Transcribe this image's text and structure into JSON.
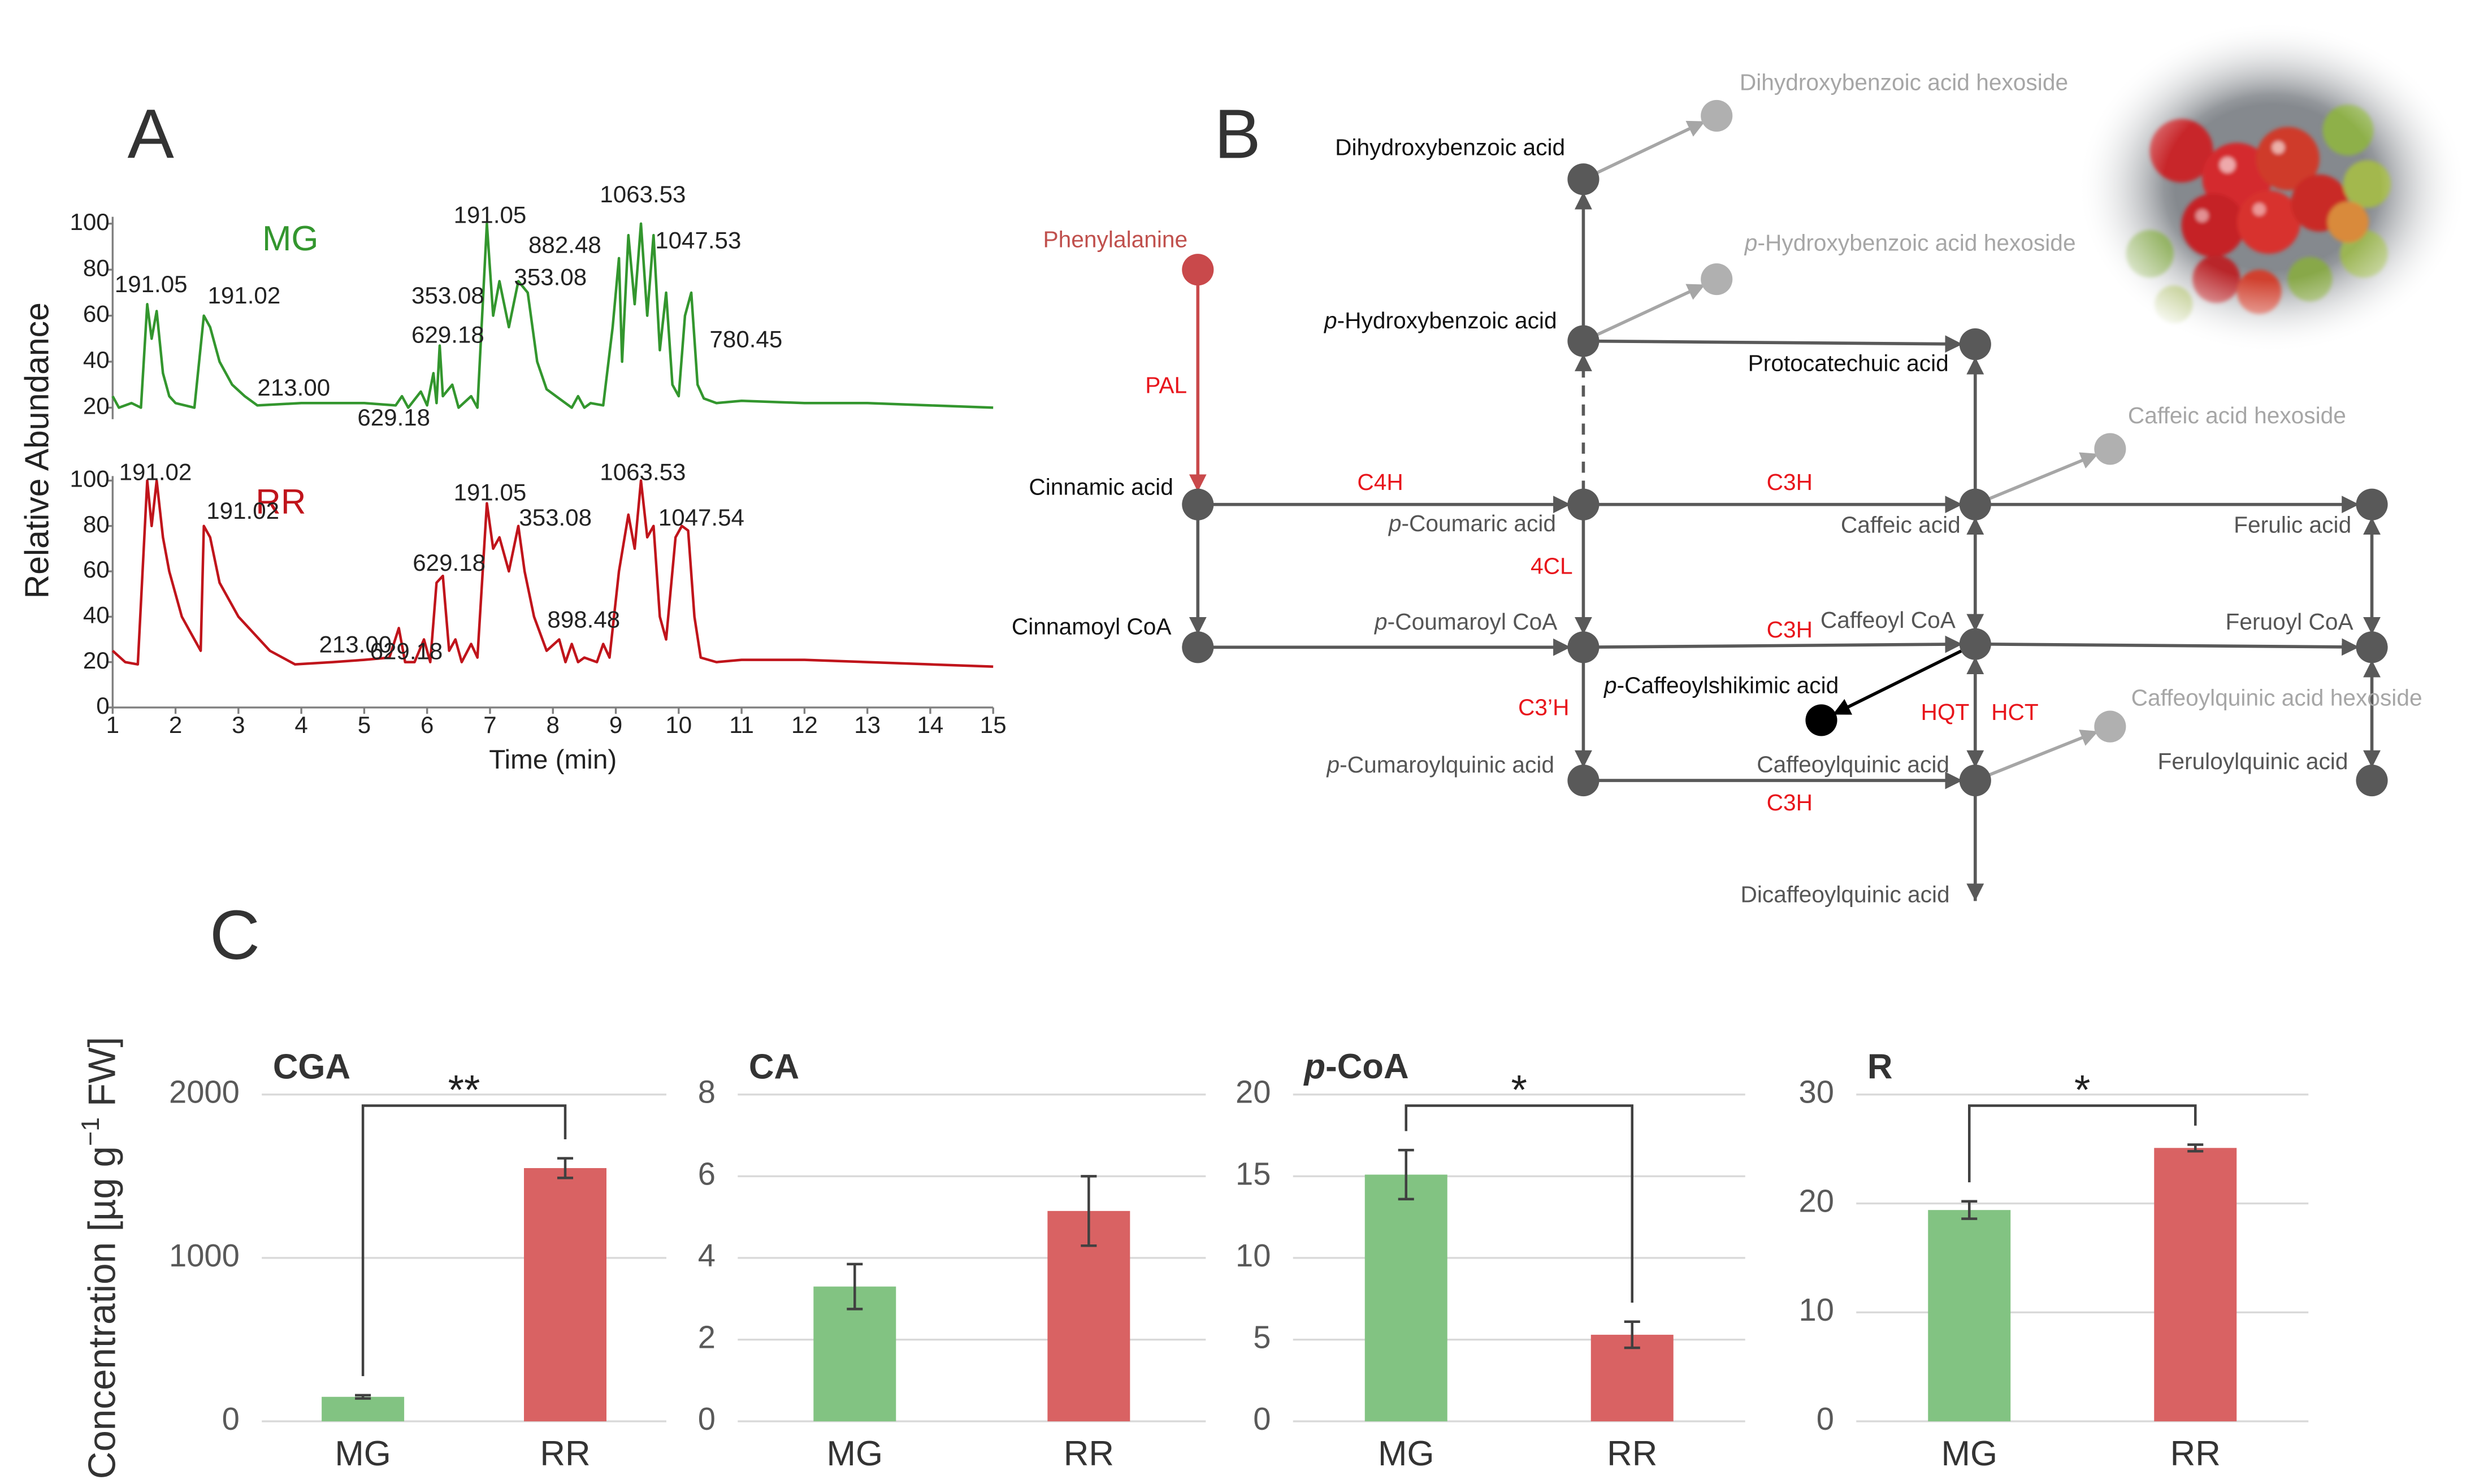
{
  "panel_labels": [
    "A",
    "B",
    "C"
  ],
  "chart_data": [
    {
      "type": "line",
      "ylabel": "Relative Abundance",
      "x": [
        1.0,
        1.1,
        1.3,
        1.45,
        1.55,
        1.62,
        1.7,
        1.8,
        1.9,
        2.0,
        2.3,
        2.45,
        2.55,
        2.7,
        2.9,
        3.1,
        3.3,
        4.0,
        5.0,
        5.5,
        5.6,
        5.7,
        5.9,
        6.0,
        6.1,
        6.15,
        6.2,
        6.25,
        6.4,
        6.5,
        6.7,
        6.8,
        6.95,
        7.05,
        7.15,
        7.3,
        7.45,
        7.6,
        7.75,
        7.9,
        8.1,
        8.3,
        8.4,
        8.5,
        8.6,
        8.8,
        8.95,
        9.05,
        9.1,
        9.2,
        9.3,
        9.4,
        9.5,
        9.6,
        9.7,
        9.8,
        9.9,
        10.0,
        10.1,
        10.2,
        10.3,
        10.4,
        10.6,
        11,
        12,
        13,
        14,
        15
      ],
      "series": [
        {
          "name": "MG",
          "color": "#33962e",
          "values": [
            25,
            20,
            22,
            20,
            65,
            50,
            62,
            35,
            25,
            22,
            20,
            60,
            55,
            40,
            30,
            25,
            21,
            22,
            22,
            21,
            25,
            20,
            27,
            21,
            35,
            22,
            47,
            25,
            30,
            20,
            25,
            20,
            100,
            60,
            75,
            55,
            75,
            70,
            40,
            28,
            24,
            20,
            25,
            20,
            22,
            21,
            55,
            85,
            40,
            95,
            65,
            100,
            60,
            95,
            45,
            70,
            30,
            25,
            60,
            70,
            30,
            24,
            22,
            23,
            22,
            22,
            21,
            20
          ]
        }
      ],
      "xlim": [
        1,
        15
      ],
      "ylim": [
        15,
        103
      ],
      "yticks": [
        20,
        40,
        60,
        80,
        100
      ],
      "annotations": [
        {
          "label": "191.05",
          "x": 1.61,
          "y": 73
        },
        {
          "label": "191.02",
          "x": 3.09,
          "y": 68
        },
        {
          "label": "213.00",
          "x": 3.88,
          "y": 28
        },
        {
          "label": "629.18",
          "x": 5.47,
          "y": 15
        },
        {
          "label": "629.18",
          "x": 6.33,
          "y": 51
        },
        {
          "label": "353.08",
          "x": 6.33,
          "y": 68
        },
        {
          "label": "191.05",
          "x": 7.0,
          "y": 103
        },
        {
          "label": "882.48",
          "x": 8.19,
          "y": 90
        },
        {
          "label": "353.08",
          "x": 7.96,
          "y": 76
        },
        {
          "label": "1063.53",
          "x": 9.43,
          "y": 112
        },
        {
          "label": "1047.53",
          "x": 10.31,
          "y": 92
        },
        {
          "label": "780.45",
          "x": 11.07,
          "y": 49
        }
      ]
    },
    {
      "type": "line",
      "xlabel": "Time (min)",
      "x": [
        1.0,
        1.2,
        1.4,
        1.55,
        1.62,
        1.7,
        1.8,
        1.9,
        2.1,
        2.3,
        2.4,
        2.45,
        2.55,
        2.7,
        3.0,
        3.5,
        3.9,
        4.5,
        5.0,
        5.4,
        5.55,
        5.65,
        5.8,
        5.95,
        6.05,
        6.15,
        6.25,
        6.35,
        6.45,
        6.55,
        6.7,
        6.8,
        6.95,
        7.05,
        7.15,
        7.3,
        7.45,
        7.55,
        7.7,
        7.9,
        8.1,
        8.2,
        8.3,
        8.4,
        8.5,
        8.7,
        8.8,
        8.9,
        9.05,
        9.2,
        9.3,
        9.4,
        9.5,
        9.6,
        9.7,
        9.8,
        9.95,
        10.05,
        10.15,
        10.25,
        10.35,
        10.6,
        11,
        12,
        13,
        14,
        15
      ],
      "series": [
        {
          "name": "RR",
          "color": "#c0141b",
          "values": [
            25,
            20,
            19,
            100,
            80,
            100,
            75,
            60,
            40,
            30,
            25,
            80,
            75,
            55,
            40,
            25,
            19,
            20,
            21,
            22,
            35,
            20,
            20,
            30,
            20,
            55,
            58,
            25,
            30,
            20,
            28,
            22,
            90,
            70,
            75,
            60,
            80,
            60,
            40,
            25,
            30,
            20,
            28,
            20,
            22,
            20,
            28,
            22,
            60,
            85,
            70,
            100,
            75,
            80,
            40,
            30,
            75,
            80,
            78,
            40,
            22,
            20,
            21,
            21,
            20,
            19,
            18
          ]
        }
      ],
      "xlim": [
        1,
        15
      ],
      "ylim": [
        0,
        102
      ],
      "xticks": [
        1,
        2,
        3,
        4,
        5,
        6,
        7,
        8,
        9,
        10,
        11,
        12,
        13,
        14,
        15
      ],
      "yticks": [
        0,
        20,
        40,
        60,
        80,
        100
      ],
      "annotations": [
        {
          "label": "191.02",
          "x": 1.68,
          "y": 103
        },
        {
          "label": "191.02",
          "x": 3.07,
          "y": 86
        },
        {
          "label": "213.00",
          "x": 4.86,
          "y": 27
        },
        {
          "label": "629.18",
          "x": 5.67,
          "y": 24
        },
        {
          "label": "629.18",
          "x": 6.35,
          "y": 63
        },
        {
          "label": "191.05",
          "x": 7.0,
          "y": 94
        },
        {
          "label": "353.08",
          "x": 8.04,
          "y": 83
        },
        {
          "label": "898.48",
          "x": 8.49,
          "y": 38
        },
        {
          "label": "1063.53",
          "x": 9.43,
          "y": 103
        },
        {
          "label": "1047.54",
          "x": 10.36,
          "y": 83
        }
      ]
    },
    {
      "type": "bar",
      "title": "CGA",
      "ylabel": [
        "Concentration [µg g",
        "−1",
        " FW]"
      ],
      "categories": [
        "MG",
        "RR"
      ],
      "values": [
        150,
        1550
      ],
      "errors": [
        10,
        60
      ],
      "colors": [
        "#82c382",
        "#d96263"
      ],
      "ylim": [
        0,
        2000
      ],
      "yticks": [
        0,
        1000,
        2000
      ],
      "grid": true,
      "significance": "**"
    },
    {
      "type": "bar",
      "title": "CA",
      "categories": [
        "MG",
        "RR"
      ],
      "values": [
        3.3,
        5.15
      ],
      "errors": [
        0.55,
        0.85
      ],
      "colors": [
        "#82c382",
        "#d96263"
      ],
      "ylim": [
        0,
        8
      ],
      "yticks": [
        0,
        2,
        4,
        6,
        8
      ],
      "grid": true
    },
    {
      "type": "bar",
      "title": [
        "p",
        "-CoA"
      ],
      "categories": [
        "MG",
        "RR"
      ],
      "values": [
        15.1,
        5.3
      ],
      "errors": [
        1.5,
        0.8
      ],
      "colors": [
        "#82c382",
        "#d96263"
      ],
      "ylim": [
        0,
        20
      ],
      "yticks": [
        0,
        5,
        10,
        15,
        20
      ],
      "grid": true,
      "significance": "*"
    },
    {
      "type": "bar",
      "title": "R",
      "categories": [
        "MG",
        "RR"
      ],
      "values": [
        19.4,
        25.1
      ],
      "errors": [
        0.8,
        0.3
      ],
      "colors": [
        "#82c382",
        "#d96263"
      ],
      "ylim": [
        0,
        30
      ],
      "yticks": [
        0,
        10,
        20,
        30
      ],
      "grid": true,
      "significance": "*"
    }
  ],
  "pathway": {
    "nodes": [
      {
        "label": "Phenylalanine",
        "color": "#c9494b",
        "text_color": "#c0504d"
      },
      {
        "label": "Cinnamic acid",
        "color": "#595959",
        "text_color": "#111"
      },
      {
        "label": "Cinnamoyl CoA",
        "color": "#595959",
        "text_color": "#111"
      },
      {
        "label": [
          "p",
          "-Coumaric acid"
        ],
        "color": "#595959",
        "text_color": "#555"
      },
      {
        "label": [
          "p",
          "-Coumaroyl CoA"
        ],
        "color": "#595959",
        "text_color": "#555"
      },
      {
        "label": [
          "p",
          "-Cumaroylquinic acid"
        ],
        "color": "#595959",
        "text_color": "#555"
      },
      {
        "label": [
          "p",
          "-Hydroxybenzoic acid"
        ],
        "color": "#595959",
        "text_color": "#111"
      },
      {
        "label": "Dihydroxybenzoic acid",
        "color": "#595959",
        "text_color": "#111"
      },
      {
        "label": "Dihydroxybenzoic acid hexoside",
        "color": "#b0b0b0",
        "text_color": "#a6a6a6"
      },
      {
        "label": [
          "p",
          "-Hydroxybenzoic acid hexoside"
        ],
        "color": "#b0b0b0",
        "text_color": "#a6a6a6"
      },
      {
        "label": "Protocatechuic acid",
        "color": "#595959",
        "text_color": "#111"
      },
      {
        "label": "Caffeic acid",
        "color": "#595959",
        "text_color": "#555"
      },
      {
        "label": "Caffeic acid hexoside",
        "color": "#b0b0b0",
        "text_color": "#a6a6a6"
      },
      {
        "label": "Ferulic acid",
        "color": "#595959",
        "text_color": "#555"
      },
      {
        "label": "Caffeoyl CoA",
        "color": "#595959",
        "text_color": "#555"
      },
      {
        "label": "Feruoyl CoA",
        "color": "#595959",
        "text_color": "#555"
      },
      {
        "label": [
          "p",
          "-Caffeoylshikimic acid"
        ],
        "color": "#000000",
        "text_color": "#111"
      },
      {
        "label": "Caffeoylquinic acid",
        "color": "#595959",
        "text_color": "#555"
      },
      {
        "label": "Caffeoylquinic acid hexoside",
        "color": "#b0b0b0",
        "text_color": "#a6a6a6"
      },
      {
        "label": "Feruloylquinic acid",
        "color": "#595959",
        "text_color": "#555"
      },
      {
        "label": "Dicaffeoylquinic acid",
        "text_color": "#555"
      }
    ],
    "enzymes": [
      "PAL",
      "C4H",
      "4CL",
      "C3H",
      "C3H",
      "C3’H",
      "HQT",
      "HCT",
      "C3H"
    ],
    "enzyme_color": "#e8141b"
  }
}
